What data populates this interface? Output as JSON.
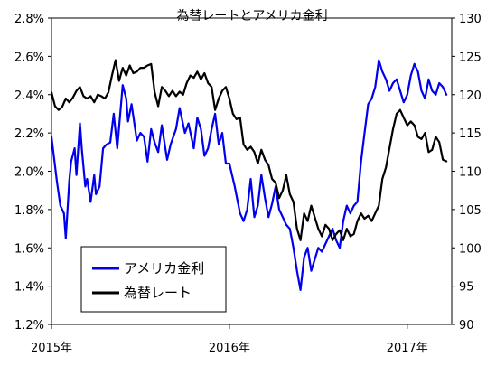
{
  "chart_data": {
    "type": "line",
    "title": "為替レートとアメリカ金利",
    "x_tick_labels": [
      "2015年",
      "2016年",
      "2017年"
    ],
    "x_range": [
      2015.0,
      2017.25
    ],
    "x_ticks": [
      2015.0,
      2016.0,
      2017.0
    ],
    "y_left": {
      "range": [
        1.2,
        2.8
      ],
      "ticks": [
        1.2,
        1.4,
        1.6,
        1.8,
        2.0,
        2.2,
        2.4,
        2.6,
        2.8
      ],
      "tick_labels": [
        "1.2%",
        "1.4%",
        "1.6%",
        "1.8%",
        "2.0%",
        "2.2%",
        "2.4%",
        "2.6%",
        "2.8%"
      ]
    },
    "y_right": {
      "range": [
        90,
        130
      ],
      "ticks": [
        90,
        95,
        100,
        105,
        110,
        115,
        120,
        125,
        130
      ],
      "tick_labels": [
        "90",
        "95",
        "100",
        "105",
        "110",
        "115",
        "120",
        "125",
        "130"
      ]
    },
    "grid": false,
    "legend": {
      "placement": "bottom-left"
    },
    "series": [
      {
        "name": "アメリカ金利",
        "axis": "left",
        "color": "#0000ee",
        "x": [
          2015.0,
          2015.03,
          2015.05,
          2015.07,
          2015.08,
          2015.1,
          2015.11,
          2015.13,
          2015.14,
          2015.16,
          2015.17,
          2015.19,
          2015.2,
          2015.22,
          2015.24,
          2015.25,
          2015.27,
          2015.29,
          2015.31,
          2015.33,
          2015.35,
          2015.37,
          2015.4,
          2015.42,
          2015.43,
          2015.45,
          2015.48,
          2015.5,
          2015.52,
          2015.54,
          2015.56,
          2015.58,
          2015.6,
          2015.62,
          2015.64,
          2015.65,
          2015.67,
          2015.7,
          2015.72,
          2015.75,
          2015.77,
          2015.8,
          2015.82,
          2015.84,
          2015.86,
          2015.88,
          2015.9,
          2015.92,
          2015.94,
          2015.96,
          2015.98,
          2016.0,
          2016.03,
          2016.06,
          2016.08,
          2016.1,
          2016.12,
          2016.14,
          2016.16,
          2016.18,
          2016.2,
          2016.22,
          2016.24,
          2016.26,
          2016.28,
          2016.3,
          2016.32,
          2016.34,
          2016.36,
          2016.38,
          2016.4,
          2016.42,
          2016.44,
          2016.46,
          2016.48,
          2016.5,
          2016.52,
          2016.54,
          2016.56,
          2016.58,
          2016.6,
          2016.62,
          2016.64,
          2016.66,
          2016.68,
          2016.7,
          2016.72,
          2016.74,
          2016.76,
          2016.78,
          2016.8,
          2016.82,
          2016.84,
          2016.86,
          2016.88,
          2016.9,
          2016.92,
          2016.94,
          2016.96,
          2016.98,
          2017.0,
          2017.02,
          2017.04,
          2017.06,
          2017.08,
          2017.1,
          2017.12,
          2017.14,
          2017.16,
          2017.18,
          2017.2,
          2017.22
        ],
        "y": [
          2.18,
          1.95,
          1.82,
          1.78,
          1.65,
          1.95,
          2.05,
          2.12,
          1.98,
          2.25,
          2.12,
          1.92,
          1.96,
          1.84,
          1.98,
          1.88,
          1.92,
          2.12,
          2.14,
          2.15,
          2.3,
          2.12,
          2.45,
          2.38,
          2.26,
          2.35,
          2.16,
          2.2,
          2.18,
          2.05,
          2.22,
          2.15,
          2.1,
          2.24,
          2.12,
          2.06,
          2.14,
          2.22,
          2.33,
          2.2,
          2.25,
          2.12,
          2.28,
          2.22,
          2.08,
          2.12,
          2.22,
          2.3,
          2.14,
          2.2,
          2.04,
          2.04,
          1.92,
          1.78,
          1.74,
          1.8,
          1.96,
          1.76,
          1.82,
          1.98,
          1.86,
          1.76,
          1.83,
          1.92,
          1.8,
          1.76,
          1.72,
          1.7,
          1.6,
          1.48,
          1.38,
          1.55,
          1.6,
          1.48,
          1.54,
          1.6,
          1.58,
          1.62,
          1.66,
          1.7,
          1.64,
          1.6,
          1.74,
          1.82,
          1.78,
          1.82,
          1.84,
          2.05,
          2.2,
          2.35,
          2.38,
          2.44,
          2.58,
          2.52,
          2.48,
          2.42,
          2.46,
          2.48,
          2.42,
          2.36,
          2.4,
          2.5,
          2.56,
          2.52,
          2.42,
          2.38,
          2.48,
          2.42,
          2.4,
          2.46,
          2.44,
          2.4
        ]
      },
      {
        "name": "為替レート",
        "axis": "right",
        "color": "#000000",
        "x": [
          2015.0,
          2015.02,
          2015.04,
          2015.06,
          2015.08,
          2015.1,
          2015.12,
          2015.14,
          2015.16,
          2015.18,
          2015.2,
          2015.22,
          2015.24,
          2015.26,
          2015.28,
          2015.3,
          2015.32,
          2015.34,
          2015.36,
          2015.38,
          2015.4,
          2015.42,
          2015.44,
          2015.46,
          2015.48,
          2015.5,
          2015.52,
          2015.54,
          2015.56,
          2015.58,
          2015.6,
          2015.62,
          2015.64,
          2015.66,
          2015.68,
          2015.7,
          2015.72,
          2015.74,
          2015.76,
          2015.78,
          2015.8,
          2015.82,
          2015.84,
          2015.86,
          2015.88,
          2015.9,
          2015.92,
          2015.94,
          2015.96,
          2015.98,
          2016.0,
          2016.02,
          2016.04,
          2016.06,
          2016.08,
          2016.1,
          2016.12,
          2016.14,
          2016.16,
          2016.18,
          2016.2,
          2016.22,
          2016.24,
          2016.26,
          2016.28,
          2016.3,
          2016.32,
          2016.34,
          2016.36,
          2016.38,
          2016.4,
          2016.42,
          2016.44,
          2016.46,
          2016.48,
          2016.5,
          2016.52,
          2016.54,
          2016.56,
          2016.58,
          2016.6,
          2016.62,
          2016.64,
          2016.66,
          2016.68,
          2016.7,
          2016.72,
          2016.74,
          2016.76,
          2016.78,
          2016.8,
          2016.82,
          2016.84,
          2016.86,
          2016.88,
          2016.9,
          2016.92,
          2016.94,
          2016.96,
          2016.98,
          2017.0,
          2017.02,
          2017.04,
          2017.06,
          2017.08,
          2017.1,
          2017.12,
          2017.14,
          2017.16,
          2017.18,
          2017.2,
          2017.22
        ],
        "y": [
          120.3,
          118.5,
          118.0,
          118.4,
          119.5,
          119.0,
          119.6,
          120.5,
          121.0,
          119.8,
          119.5,
          119.8,
          119.0,
          120.0,
          119.8,
          119.5,
          120.3,
          122.5,
          124.5,
          121.8,
          123.5,
          122.5,
          123.8,
          122.8,
          123.0,
          123.5,
          123.5,
          123.8,
          124.0,
          120.3,
          118.5,
          121.0,
          120.5,
          119.8,
          120.5,
          119.8,
          120.4,
          120.0,
          121.5,
          122.5,
          122.2,
          123.0,
          122.0,
          122.8,
          121.5,
          121.0,
          118.0,
          119.5,
          120.5,
          121.0,
          119.5,
          117.5,
          116.8,
          117.0,
          113.5,
          112.8,
          113.2,
          112.5,
          111.0,
          112.8,
          111.5,
          110.8,
          109.0,
          108.5,
          106.5,
          107.5,
          109.5,
          107.0,
          106.0,
          102.5,
          101.0,
          104.5,
          103.5,
          105.5,
          104.0,
          102.5,
          101.5,
          103.0,
          102.5,
          101.0,
          101.8,
          102.3,
          101.0,
          102.5,
          101.5,
          101.8,
          103.5,
          104.5,
          103.8,
          104.2,
          103.5,
          104.5,
          105.5,
          109.0,
          110.5,
          113.0,
          115.5,
          117.5,
          118.0,
          117.0,
          116.0,
          116.5,
          116.0,
          114.5,
          114.2,
          115.0,
          112.5,
          112.8,
          114.5,
          113.8,
          111.5,
          111.3
        ]
      }
    ]
  }
}
